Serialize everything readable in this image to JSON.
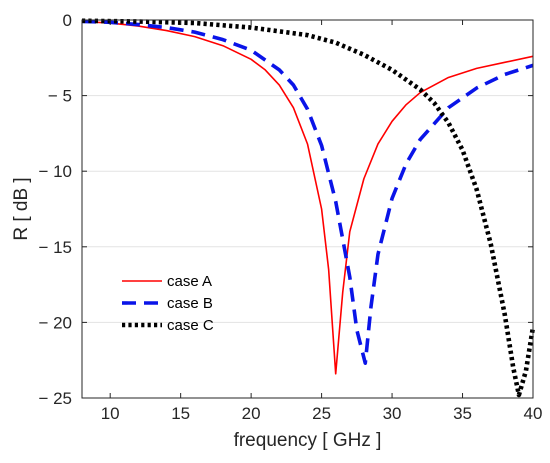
{
  "chart_data": {
    "type": "line",
    "title": "",
    "xlabel": "frequency  [ GHz ]",
    "ylabel": "R   [ dB ]",
    "xlim": [
      8,
      40
    ],
    "ylim": [
      -25,
      0
    ],
    "xticks": [
      10,
      15,
      20,
      25,
      30,
      35,
      40
    ],
    "yticks": [
      0,
      -5,
      -10,
      -15,
      -20,
      -25
    ],
    "xtick_labels": [
      "10",
      "15",
      "20",
      "25",
      "30",
      "35",
      "40"
    ],
    "ytick_labels": [
      "0",
      "− 5",
      "− 10",
      "− 15",
      "− 20",
      "− 25"
    ],
    "grid": "horizontal",
    "legend_placement": "lower-left",
    "series": [
      {
        "name": "case A",
        "color": "#ff0000",
        "style": "solid",
        "points": [
          [
            8,
            -0.1
          ],
          [
            10,
            -0.2
          ],
          [
            12,
            -0.4
          ],
          [
            14,
            -0.7
          ],
          [
            16,
            -1.1
          ],
          [
            18,
            -1.7
          ],
          [
            20,
            -2.6
          ],
          [
            21,
            -3.3
          ],
          [
            22,
            -4.3
          ],
          [
            23,
            -5.8
          ],
          [
            24,
            -8.2
          ],
          [
            25,
            -12.5
          ],
          [
            25.5,
            -16.5
          ],
          [
            26,
            -23.4
          ],
          [
            26.5,
            -18.0
          ],
          [
            27,
            -14.0
          ],
          [
            28,
            -10.5
          ],
          [
            29,
            -8.2
          ],
          [
            30,
            -6.7
          ],
          [
            31,
            -5.6
          ],
          [
            32,
            -4.8
          ],
          [
            34,
            -3.8
          ],
          [
            36,
            -3.2
          ],
          [
            38,
            -2.8
          ],
          [
            40,
            -2.4
          ]
        ]
      },
      {
        "name": "case B",
        "color": "#0a14e8",
        "style": "dashed",
        "points": [
          [
            8,
            -0.1
          ],
          [
            10,
            -0.15
          ],
          [
            12,
            -0.3
          ],
          [
            14,
            -0.5
          ],
          [
            16,
            -0.8
          ],
          [
            18,
            -1.3
          ],
          [
            20,
            -2.0
          ],
          [
            22,
            -3.3
          ],
          [
            23,
            -4.3
          ],
          [
            24,
            -5.9
          ],
          [
            25,
            -8.3
          ],
          [
            26,
            -12.0
          ],
          [
            27,
            -17.0
          ],
          [
            27.5,
            -20.5
          ],
          [
            28.1,
            -22.7
          ],
          [
            28.5,
            -19.0
          ],
          [
            29,
            -15.5
          ],
          [
            30,
            -11.8
          ],
          [
            31,
            -9.5
          ],
          [
            32,
            -7.9
          ],
          [
            34,
            -5.8
          ],
          [
            36,
            -4.5
          ],
          [
            38,
            -3.6
          ],
          [
            40,
            -3.0
          ]
        ]
      },
      {
        "name": "case C",
        "color": "#000000",
        "style": "dotted",
        "points": [
          [
            8,
            -0.05
          ],
          [
            12,
            -0.1
          ],
          [
            16,
            -0.2
          ],
          [
            20,
            -0.5
          ],
          [
            24,
            -1.0
          ],
          [
            26,
            -1.5
          ],
          [
            28,
            -2.3
          ],
          [
            30,
            -3.3
          ],
          [
            32,
            -4.6
          ],
          [
            33,
            -5.5
          ],
          [
            34,
            -6.8
          ],
          [
            35,
            -8.6
          ],
          [
            36,
            -11.2
          ],
          [
            37,
            -14.8
          ],
          [
            38,
            -19.5
          ],
          [
            38.6,
            -23.0
          ],
          [
            39,
            -24.8
          ],
          [
            39.5,
            -23.2
          ],
          [
            40,
            -20.3
          ]
        ]
      }
    ]
  }
}
